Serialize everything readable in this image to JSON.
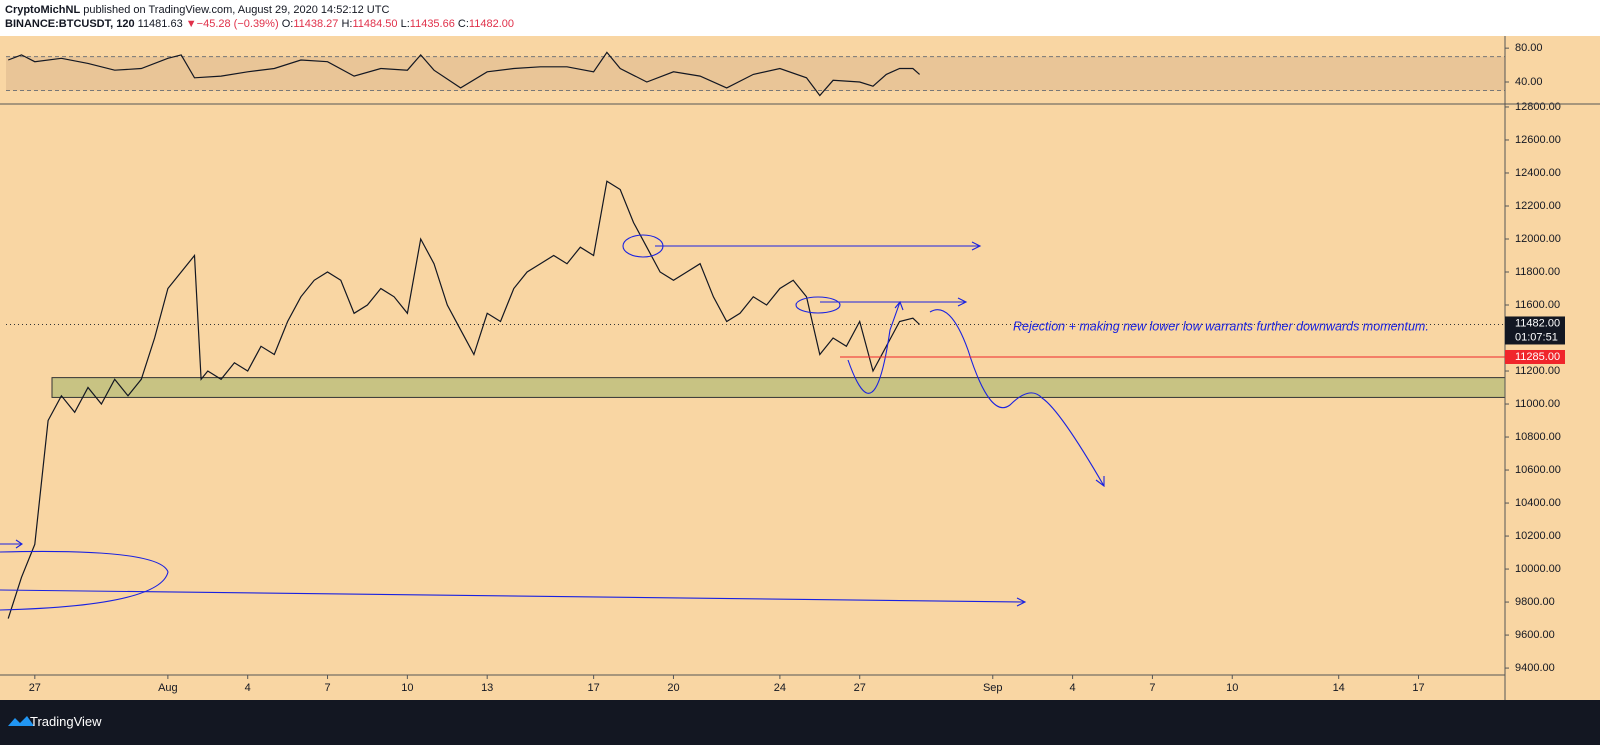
{
  "header": {
    "author": "CryptoMichNL",
    "published": "published on TradingView.com, August 29, 2020 14:52:12 UTC",
    "symbol": "BINANCE:BTCUSDT, 120",
    "last": "11481.63",
    "arrow": "▼",
    "change": "−45.28 (−0.39%)",
    "open_label": "O:",
    "open": "11438.27",
    "high_label": "H:",
    "high": "11484.50",
    "low_label": "L:",
    "low": "11435.66",
    "close_label": "C:",
    "close": "11482.00"
  },
  "chart_data": [
    {
      "type": "line",
      "color": "#131722",
      "band": [
        30,
        70
      ],
      "band_color": "#e9c597",
      "ylim": [
        14,
        92
      ],
      "yticks": [
        {
          "value": 80,
          "label": "80.00"
        },
        {
          "value": 40,
          "label": "40.00"
        }
      ],
      "x": [
        "2020-07-26T00:00",
        "2020-07-26T12:00",
        "2020-07-27T00:00",
        "2020-07-28T00:00",
        "2020-07-29T00:00",
        "2020-07-30T00:00",
        "2020-07-31T00:00",
        "2020-08-01T00:00",
        "2020-08-01T12:00",
        "2020-08-02T00:00",
        "2020-08-03T00:00",
        "2020-08-04T00:00",
        "2020-08-05T00:00",
        "2020-08-06T00:00",
        "2020-08-07T00:00",
        "2020-08-08T00:00",
        "2020-08-09T00:00",
        "2020-08-10T00:00",
        "2020-08-10T12:00",
        "2020-08-11T00:00",
        "2020-08-12T00:00",
        "2020-08-13T00:00",
        "2020-08-14T00:00",
        "2020-08-15T00:00",
        "2020-08-16T00:00",
        "2020-08-17T00:00",
        "2020-08-17T12:00",
        "2020-08-18T00:00",
        "2020-08-19T00:00",
        "2020-08-20T00:00",
        "2020-08-21T00:00",
        "2020-08-22T00:00",
        "2020-08-23T00:00",
        "2020-08-24T00:00",
        "2020-08-25T00:00",
        "2020-08-25T12:00",
        "2020-08-26T00:00",
        "2020-08-27T00:00",
        "2020-08-27T12:00",
        "2020-08-28T00:00",
        "2020-08-28T12:00",
        "2020-08-29T00:00",
        "2020-08-29T06:00"
      ],
      "values": [
        66,
        72,
        64,
        68,
        62,
        54,
        56,
        68,
        72,
        45,
        47,
        52,
        56,
        66,
        64,
        47,
        56,
        54,
        72,
        54,
        33,
        52,
        56,
        58,
        58,
        52,
        75,
        56,
        40,
        52,
        47,
        33,
        49,
        56,
        45,
        24,
        42,
        40,
        35,
        49,
        56,
        56,
        49
      ]
    },
    {
      "type": "line",
      "color": "#131722",
      "ylim": [
        9358,
        12818
      ],
      "yticks": [
        {
          "value": 9400,
          "label": "9400.00"
        },
        {
          "value": 9600,
          "label": "9600.00"
        },
        {
          "value": 9800,
          "label": "9800.00"
        },
        {
          "value": 10000,
          "label": "10000.00"
        },
        {
          "value": 10200,
          "label": "10200.00"
        },
        {
          "value": 10400,
          "label": "10400.00"
        },
        {
          "value": 10600,
          "label": "10600.00"
        },
        {
          "value": 10800,
          "label": "10800.00"
        },
        {
          "value": 11000,
          "label": "11000.00"
        },
        {
          "value": 11200,
          "label": "11200.00"
        },
        {
          "value": 11400,
          "label": "11400.00"
        },
        {
          "value": 11600,
          "label": "11600.00"
        },
        {
          "value": 11800,
          "label": "11800.00"
        },
        {
          "value": 12000,
          "label": "12000.00"
        },
        {
          "value": 12200,
          "label": "12200.00"
        },
        {
          "value": 12400,
          "label": "12400.00"
        },
        {
          "value": 12600,
          "label": "12600.00"
        },
        {
          "value": 12800,
          "label": "12800.00"
        }
      ],
      "xlim": [
        "2020-07-25T22:00",
        "2020-09-20T06:00"
      ],
      "xticks": [
        {
          "value": "2020-07-27",
          "label": "27"
        },
        {
          "value": "2020-08-01",
          "label": "Aug"
        },
        {
          "value": "2020-08-04",
          "label": "4"
        },
        {
          "value": "2020-08-07",
          "label": "7"
        },
        {
          "value": "2020-08-10",
          "label": "10"
        },
        {
          "value": "2020-08-13",
          "label": "13"
        },
        {
          "value": "2020-08-17",
          "label": "17"
        },
        {
          "value": "2020-08-20",
          "label": "20"
        },
        {
          "value": "2020-08-24",
          "label": "24"
        },
        {
          "value": "2020-08-27",
          "label": "27"
        },
        {
          "value": "2020-09-01",
          "label": "Sep"
        },
        {
          "value": "2020-09-04",
          "label": "4"
        },
        {
          "value": "2020-09-07",
          "label": "7"
        },
        {
          "value": "2020-09-10",
          "label": "10"
        },
        {
          "value": "2020-09-14",
          "label": "14"
        },
        {
          "value": "2020-09-17",
          "label": "17"
        }
      ],
      "x": [
        "2020-07-26T00:00",
        "2020-07-26T12:00",
        "2020-07-27T00:00",
        "2020-07-27T12:00",
        "2020-07-28T00:00",
        "2020-07-28T12:00",
        "2020-07-29T00:00",
        "2020-07-29T12:00",
        "2020-07-30T00:00",
        "2020-07-30T12:00",
        "2020-07-31T00:00",
        "2020-07-31T12:00",
        "2020-08-01T00:00",
        "2020-08-01T12:00",
        "2020-08-02T00:00",
        "2020-08-02T06:00",
        "2020-08-02T12:00",
        "2020-08-03T00:00",
        "2020-08-03T12:00",
        "2020-08-04T00:00",
        "2020-08-04T12:00",
        "2020-08-05T00:00",
        "2020-08-05T12:00",
        "2020-08-06T00:00",
        "2020-08-06T12:00",
        "2020-08-07T00:00",
        "2020-08-07T12:00",
        "2020-08-08T00:00",
        "2020-08-08T12:00",
        "2020-08-09T00:00",
        "2020-08-09T12:00",
        "2020-08-10T00:00",
        "2020-08-10T12:00",
        "2020-08-11T00:00",
        "2020-08-11T12:00",
        "2020-08-12T00:00",
        "2020-08-12T12:00",
        "2020-08-13T00:00",
        "2020-08-13T12:00",
        "2020-08-14T00:00",
        "2020-08-14T12:00",
        "2020-08-15T00:00",
        "2020-08-15T12:00",
        "2020-08-16T00:00",
        "2020-08-16T12:00",
        "2020-08-17T00:00",
        "2020-08-17T12:00",
        "2020-08-18T00:00",
        "2020-08-18T12:00",
        "2020-08-19T00:00",
        "2020-08-19T12:00",
        "2020-08-20T00:00",
        "2020-08-20T12:00",
        "2020-08-21T00:00",
        "2020-08-21T12:00",
        "2020-08-22T00:00",
        "2020-08-22T12:00",
        "2020-08-23T00:00",
        "2020-08-23T12:00",
        "2020-08-24T00:00",
        "2020-08-24T12:00",
        "2020-08-25T00:00",
        "2020-08-25T12:00",
        "2020-08-26T00:00",
        "2020-08-26T12:00",
        "2020-08-27T00:00",
        "2020-08-27T12:00",
        "2020-08-28T00:00",
        "2020-08-28T12:00",
        "2020-08-29T00:00",
        "2020-08-29T06:00"
      ],
      "values": [
        9700,
        9950,
        10150,
        10900,
        11050,
        10950,
        11100,
        11000,
        11150,
        11050,
        11150,
        11400,
        11700,
        11800,
        11900,
        11150,
        11200,
        11150,
        11250,
        11200,
        11350,
        11300,
        11500,
        11650,
        11750,
        11800,
        11750,
        11550,
        11600,
        11700,
        11650,
        11550,
        12000,
        11850,
        11600,
        11450,
        11300,
        11550,
        11500,
        11700,
        11800,
        11850,
        11900,
        11850,
        11950,
        11900,
        12350,
        12300,
        12100,
        11950,
        11800,
        11750,
        11800,
        11850,
        11650,
        11500,
        11550,
        11650,
        11600,
        11700,
        11750,
        11650,
        11300,
        11400,
        11350,
        11500,
        11200,
        11350,
        11500,
        11520,
        11482
      ],
      "zone": [
        11040,
        11160
      ],
      "zone_color": "#c8c383",
      "last_price": {
        "value": 11482,
        "label": "11482.00",
        "countdown": "01:07:51"
      },
      "price_line": {
        "value": 11285,
        "label": "11285.00",
        "color": "#f0252b"
      },
      "annotation": "Rejection + making new lower low warrants further downwards momentum."
    }
  ],
  "footer": {
    "brand": "TradingView"
  }
}
